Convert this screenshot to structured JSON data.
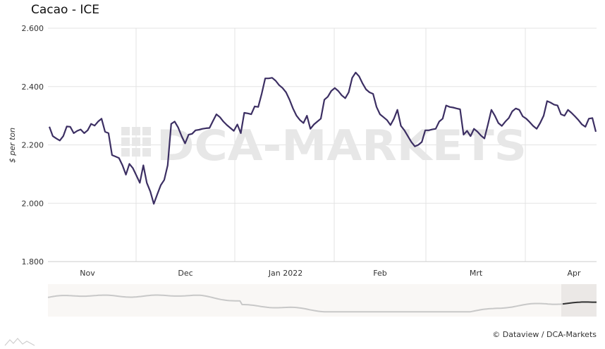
{
  "title": "Cacao - ICE",
  "credit": "© Dataview / DCA-Markets",
  "watermark": "DCA-MARKETS",
  "colors": {
    "line": "#3c2f63",
    "grid": "#e3e3e3",
    "navigator_line": "#c8c8c8",
    "navigator_selected": "#333333"
  },
  "chart_data": {
    "type": "line",
    "title": "Cacao - ICE",
    "ylabel": "$ per ton",
    "xlabel": "",
    "ylim": [
      1800,
      2600
    ],
    "yticks": [
      2600,
      2400,
      2200,
      2000,
      1800
    ],
    "ytick_labels": [
      "2.600",
      "2.400",
      "2.200",
      "2.000",
      "1.800"
    ],
    "xticks": [
      "Nov",
      "Dec",
      "Jan 2022",
      "Feb",
      "Mrt",
      "Apr"
    ],
    "grid": true,
    "series": [
      {
        "values": [
          2262,
          2230,
          2222,
          2215,
          2230,
          2263,
          2262,
          2240,
          2248,
          2253,
          2240,
          2250,
          2272,
          2266,
          2280,
          2290,
          2245,
          2240,
          2165,
          2160,
          2155,
          2130,
          2098,
          2135,
          2120,
          2095,
          2070,
          2130,
          2070,
          2040,
          1998,
          2030,
          2062,
          2080,
          2130,
          2272,
          2280,
          2260,
          2230,
          2205,
          2235,
          2238,
          2250,
          2252,
          2255,
          2257,
          2258,
          2282,
          2305,
          2295,
          2280,
          2268,
          2258,
          2248,
          2270,
          2240,
          2310,
          2308,
          2305,
          2332,
          2330,
          2375,
          2428,
          2428,
          2430,
          2420,
          2405,
          2395,
          2380,
          2355,
          2325,
          2300,
          2285,
          2275,
          2300,
          2255,
          2270,
          2280,
          2290,
          2355,
          2365,
          2385,
          2395,
          2385,
          2370,
          2360,
          2380,
          2430,
          2448,
          2435,
          2410,
          2390,
          2380,
          2375,
          2330,
          2305,
          2295,
          2285,
          2268,
          2290,
          2320,
          2265,
          2250,
          2230,
          2210,
          2195,
          2200,
          2210,
          2250,
          2250,
          2253,
          2255,
          2280,
          2290,
          2335,
          2330,
          2328,
          2325,
          2322,
          2235,
          2248,
          2230,
          2255,
          2245,
          2232,
          2222,
          2270,
          2320,
          2300,
          2275,
          2265,
          2280,
          2292,
          2315,
          2325,
          2320,
          2298,
          2290,
          2278,
          2265,
          2255,
          2275,
          2300,
          2350,
          2345,
          2338,
          2335,
          2305,
          2300,
          2320,
          2310,
          2298,
          2285,
          2270,
          2262,
          2290,
          2292,
          2245
        ]
      }
    ]
  }
}
